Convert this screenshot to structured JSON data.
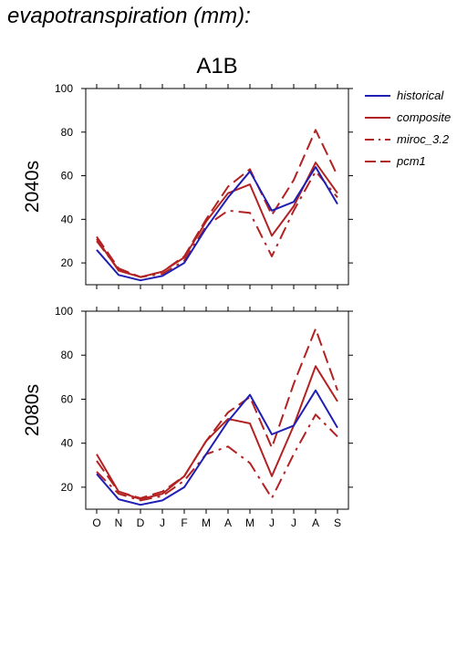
{
  "page": {
    "title": "evapotranspiration (mm):"
  },
  "colors": {
    "historical": "#1f1fb4",
    "composite": "#b22222",
    "miroc": "#b22222",
    "pcm1": "#b22222",
    "axis": "#000000"
  },
  "legend": [
    {
      "name": "historical",
      "style": "solid",
      "color": "#1f1fb4"
    },
    {
      "name": "composite",
      "style": "solid",
      "color": "#b22222"
    },
    {
      "name": "miroc_3.2",
      "style": "dashdot",
      "color": "#b22222"
    },
    {
      "name": "pcm1",
      "style": "dashed",
      "color": "#b22222"
    }
  ],
  "chart_data": {
    "type": "line",
    "title": "A1B",
    "categories": [
      "O",
      "N",
      "D",
      "J",
      "F",
      "M",
      "A",
      "M",
      "J",
      "J",
      "A",
      "S"
    ],
    "legend_position": "top-right",
    "grid": false,
    "panels": [
      {
        "label": "2040s",
        "ylim": [
          10,
          100
        ],
        "yticks": [
          20,
          40,
          60,
          80,
          100
        ],
        "series": [
          {
            "name": "historical",
            "values": [
              26,
              14.5,
              12,
              14,
              20,
              36,
              50,
              62,
              44,
              48,
              64,
              47
            ]
          },
          {
            "name": "composite",
            "values": [
              31,
              16.5,
              13.5,
              16,
              22.5,
              39,
              52,
              56,
              32.5,
              46,
              66,
              52
            ]
          },
          {
            "name": "miroc_3.2",
            "values": [
              30,
              17,
              13.5,
              15,
              21,
              37,
              44,
              43,
              23,
              44,
              62,
              50
            ]
          },
          {
            "name": "pcm1",
            "values": [
              32,
              17.5,
              13.5,
              16,
              23,
              40,
              55,
              63,
              42,
              58,
              81,
              60
            ]
          }
        ]
      },
      {
        "label": "2080s",
        "ylim": [
          10,
          100
        ],
        "yticks": [
          20,
          40,
          60,
          80,
          100
        ],
        "series": [
          {
            "name": "historical",
            "values": [
              26,
              14.5,
              12,
              14,
              20,
              35,
              50,
              62,
              44,
              48,
              64,
              47
            ]
          },
          {
            "name": "composite",
            "values": [
              35,
              18,
              14.5,
              17,
              25,
              41,
              51,
              49,
              25,
              48,
              75,
              59
            ]
          },
          {
            "name": "miroc_3.2",
            "values": [
              27,
              17,
              14,
              16,
              23,
              35,
              38.5,
              31,
              15,
              35,
              53,
              43
            ]
          },
          {
            "name": "pcm1",
            "values": [
              32,
              18,
              15,
              18,
              25,
              41,
              54,
              61,
              38,
              67,
              92,
              64
            ]
          }
        ]
      }
    ]
  }
}
